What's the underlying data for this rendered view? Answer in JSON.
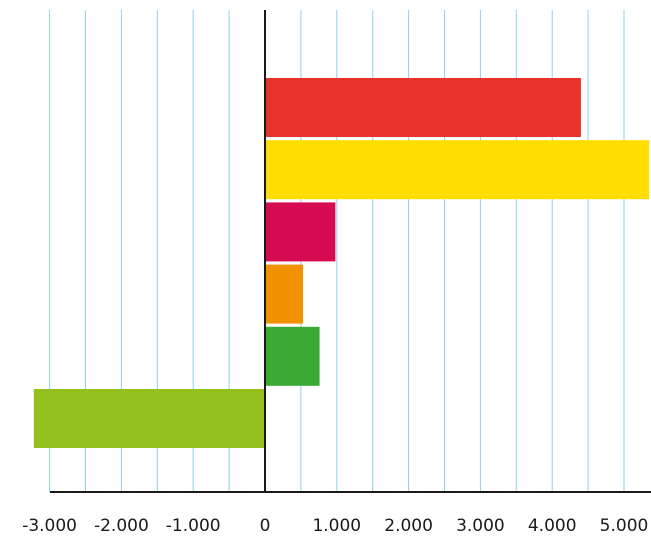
{
  "chart_data": {
    "type": "bar",
    "orientation": "horizontal",
    "title": "",
    "xlabel": "",
    "ylabel": "",
    "xlim": [
      -3000,
      5000
    ],
    "x_ticks": [
      -3000,
      -2000,
      -1000,
      0,
      1000,
      2000,
      3000,
      4000,
      5000
    ],
    "x_tick_labels": [
      "-3.000",
      "-2.000",
      "-1.000",
      "0",
      "1.000",
      "2.000",
      "3.000",
      "4.000",
      "5.000"
    ],
    "grid": "vertical, every 500",
    "legend": "none",
    "categories": [
      "",
      "",
      "",
      "",
      "",
      ""
    ],
    "values": [
      4400,
      5350,
      980,
      530,
      760,
      -3220
    ],
    "colors": [
      "#e5332a",
      "#ffdd00",
      "#d60b51",
      "#f39200",
      "#3aaa35",
      "#95c11f"
    ],
    "gridline_color": "#8fd0ee",
    "axis_color": "#1a1a1a"
  }
}
